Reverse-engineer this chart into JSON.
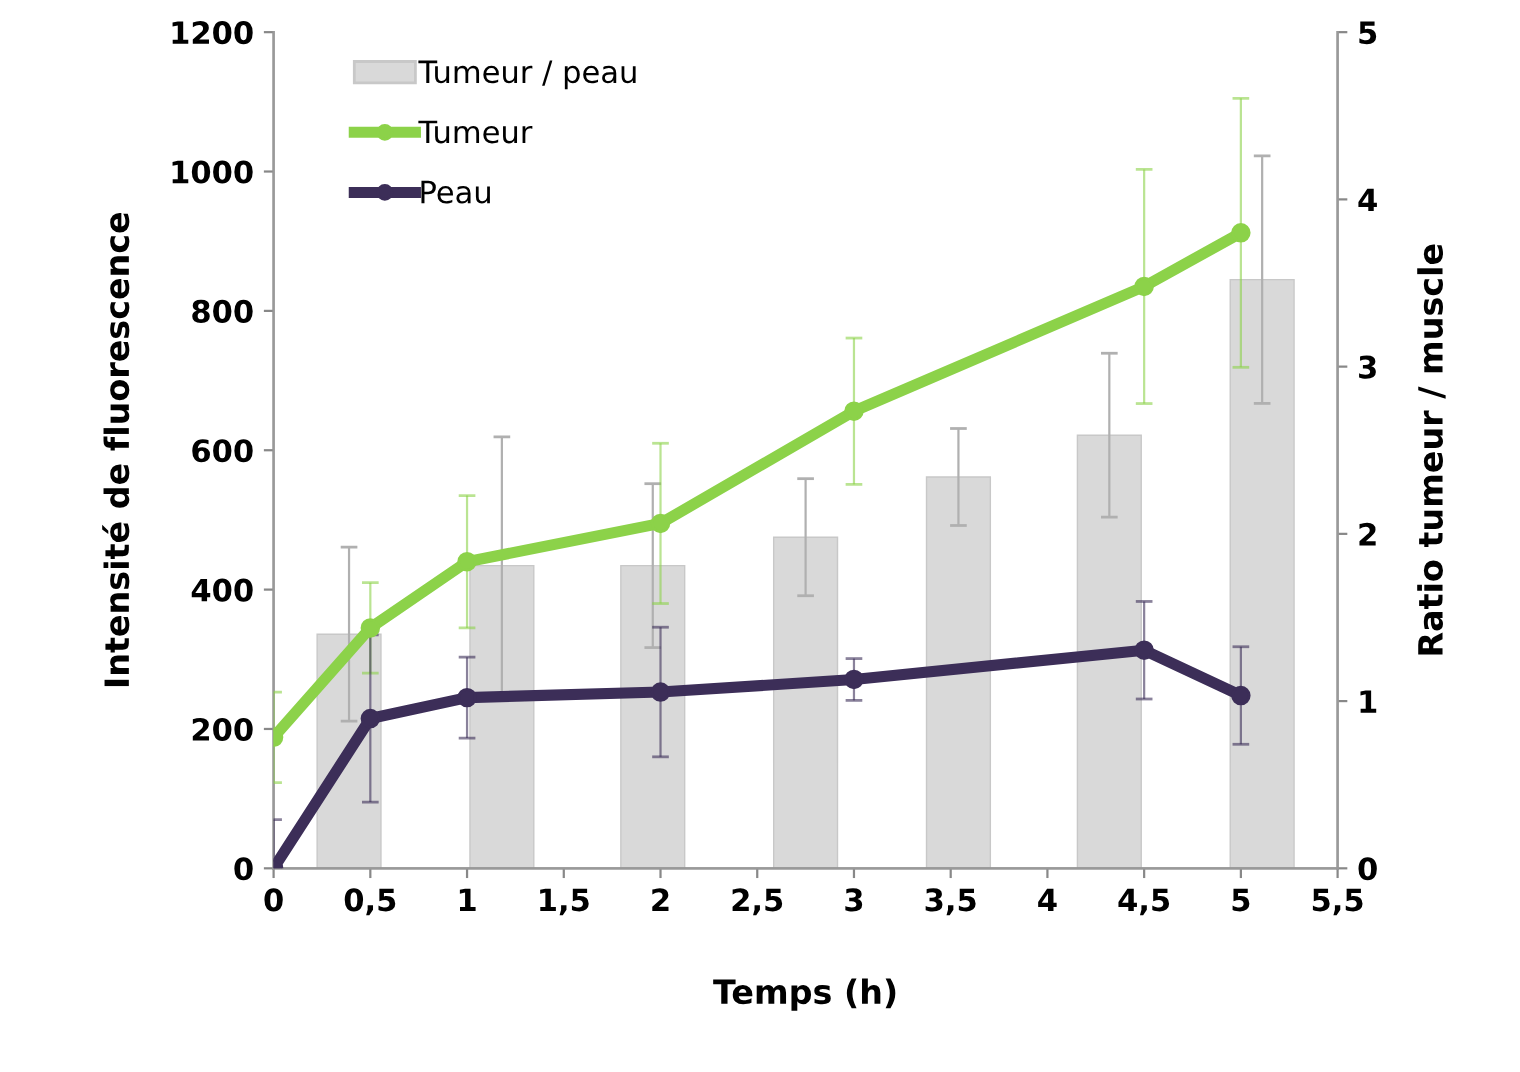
{
  "chart_data": {
    "type": "line",
    "xlabel": "Temps (h)",
    "ylabel": "Intensité de fluorescence",
    "y2label": "Ratio tumeur / muscle",
    "xlim": [
      0,
      5.5
    ],
    "xticks": [
      0,
      {
        "value": 0.5,
        "label": "0,5"
      },
      1,
      {
        "value": 1.5,
        "label": "1,5"
      },
      2,
      {
        "value": 2.5,
        "label": "2,5"
      },
      3,
      {
        "value": 3.5,
        "label": "3,5"
      },
      4,
      {
        "value": 4.5,
        "label": "4,5"
      },
      5,
      {
        "value": 5.5,
        "label": "5,5"
      }
    ],
    "ylim": [
      0,
      1200
    ],
    "yticks": [
      0,
      200,
      400,
      600,
      800,
      1000,
      1200
    ],
    "y2lim": [
      0,
      5
    ],
    "y2ticks": [
      0,
      1,
      2,
      3,
      4,
      5
    ],
    "grid": false,
    "legend": "top left",
    "marker": "circle",
    "line_style": "solid",
    "series": [
      {
        "name": "Tumeur / peau",
        "type": "bar",
        "axis": "y2",
        "color": "#d9d9d9",
        "x": [
          0.39,
          1.18,
          1.96,
          2.75,
          3.54,
          4.32,
          5.11
        ],
        "values": [
          1.4,
          1.81,
          1.81,
          1.98,
          2.34,
          2.59,
          3.52
        ],
        "errors": [
          0.52,
          0.77,
          0.49,
          0.35,
          0.29,
          0.49,
          0.74
        ]
      },
      {
        "name": "Tumeur",
        "color": "#8cd249",
        "x": [
          0,
          0.5,
          1,
          2,
          3,
          4.5,
          5
        ],
        "values": [
          188,
          345,
          440,
          495,
          656,
          835,
          912
        ],
        "errors": [
          65,
          65,
          95,
          115,
          105,
          168,
          193
        ]
      },
      {
        "name": "Peau",
        "color": "#3c2e58",
        "x": [
          0,
          0.5,
          1,
          2,
          3,
          4.5,
          5
        ],
        "values": [
          0,
          215,
          245,
          253,
          271,
          313,
          248
        ],
        "errors": [
          70,
          120,
          58,
          93,
          30,
          70,
          70
        ]
      }
    ]
  }
}
